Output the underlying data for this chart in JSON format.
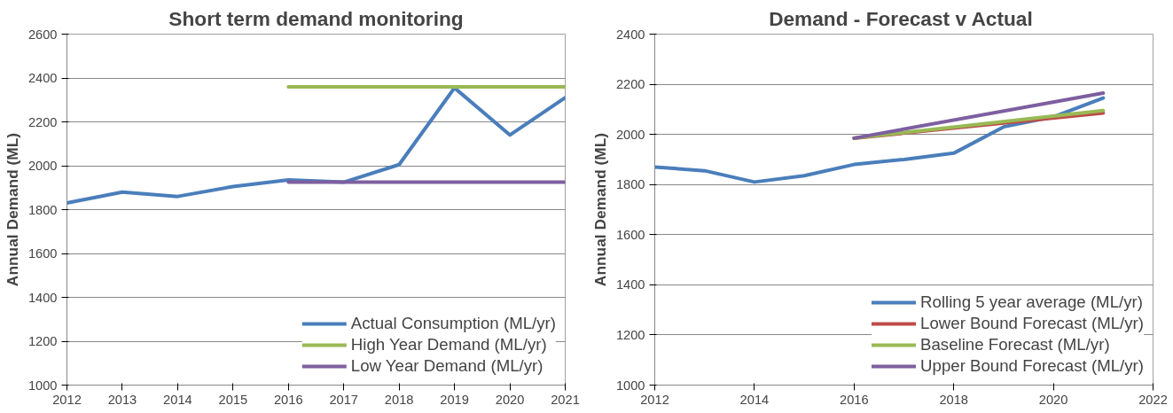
{
  "chart_data": [
    {
      "type": "line",
      "title": "Short term demand monitoring",
      "ylabel": "Annual Demand (ML)",
      "xlim": [
        2012,
        2021
      ],
      "xticks": [
        2012,
        2013,
        2014,
        2015,
        2016,
        2017,
        2018,
        2019,
        2020,
        2021
      ],
      "ylim": [
        1000,
        2600
      ],
      "yticks": [
        1000,
        1200,
        1400,
        1600,
        1800,
        2000,
        2200,
        2400,
        2600
      ],
      "grid": "y",
      "legend": "bottom right",
      "marker": "none",
      "line_style": "solid",
      "series": [
        {
          "name": "Actual Consumption (ML/yr)",
          "color": "#4a7ebb",
          "x": [
            2012,
            2013,
            2014,
            2015,
            2016,
            2017,
            2018,
            2019,
            2020,
            2021
          ],
          "values": [
            1830,
            1880,
            1860,
            1905,
            1935,
            1925,
            2005,
            2355,
            2140,
            2310
          ]
        },
        {
          "name": "High Year Demand (ML/yr)",
          "color": "#98b954",
          "x": [
            2016,
            2021
          ],
          "values": [
            2360,
            2360
          ]
        },
        {
          "name": "Low Year Demand (ML/yr)",
          "color": "#7d5fa0",
          "x": [
            2016,
            2021
          ],
          "values": [
            1925,
            1925
          ]
        }
      ]
    },
    {
      "type": "line",
      "title": "Demand -  Forecast v Actual",
      "ylabel": "Annual Demand (ML)",
      "xlim": [
        2012,
        2022
      ],
      "xticks": [
        2012,
        2014,
        2016,
        2018,
        2020,
        2022
      ],
      "ylim": [
        1000,
        2400
      ],
      "yticks": [
        1000,
        1200,
        1400,
        1600,
        1800,
        2000,
        2200,
        2400
      ],
      "grid": "y",
      "legend": "bottom right",
      "marker": "none",
      "line_style": "solid",
      "series": [
        {
          "name": "Rolling 5 year average (ML/yr)",
          "color": "#4a7ebb",
          "x": [
            2012,
            2013,
            2014,
            2015,
            2016,
            2017,
            2018,
            2019,
            2020,
            2021
          ],
          "values": [
            1870,
            1855,
            1810,
            1835,
            1880,
            1900,
            1925,
            2030,
            2070,
            2145
          ]
        },
        {
          "name": "Lower Bound Forecast (ML/yr)",
          "color": "#be4b48",
          "x": [
            2016,
            2021
          ],
          "values": [
            1985,
            2085
          ]
        },
        {
          "name": "Baseline Forecast (ML/yr)",
          "color": "#98b954",
          "x": [
            2016,
            2021
          ],
          "values": [
            1985,
            2095
          ]
        },
        {
          "name": "Upper Bound Forecast (ML/yr)",
          "color": "#7d5fa0",
          "x": [
            2016,
            2021
          ],
          "values": [
            1985,
            2165
          ]
        }
      ]
    }
  ]
}
